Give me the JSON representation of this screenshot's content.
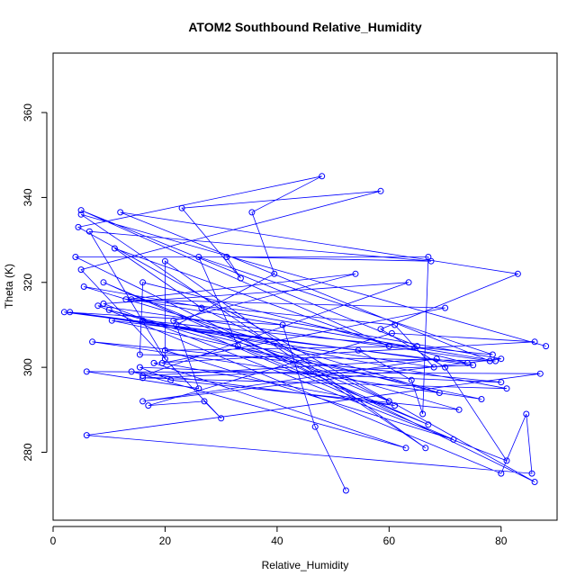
{
  "chart_data": {
    "type": "line",
    "title": "ATOM2 Southbound Relative_Humidity",
    "xlabel": "Relative_Humidity",
    "ylabel": "Theta (K)",
    "xlim": [
      0,
      90
    ],
    "ylim": [
      264,
      374
    ],
    "x_ticks": [
      0,
      20,
      40,
      60,
      80
    ],
    "y_ticks": [
      280,
      300,
      320,
      340,
      360
    ],
    "x_tick_labels": [
      "0",
      "20",
      "40",
      "60",
      "80"
    ],
    "y_tick_labels": [
      "280",
      "300",
      "320",
      "340",
      "360"
    ],
    "grid": false,
    "legend": "none",
    "color": "#0000ff",
    "marker": "open-circle",
    "series": [
      {
        "points": [
          [
            52.3,
            271
          ],
          [
            46.8,
            286
          ],
          [
            41,
            310
          ],
          [
            2,
            313
          ],
          [
            54.5,
            304
          ],
          [
            64,
            297
          ],
          [
            66,
            289
          ],
          [
            67,
            326
          ],
          [
            4,
            326
          ],
          [
            86,
            273
          ],
          [
            4.5,
            333
          ],
          [
            48,
            345
          ],
          [
            35.5,
            336.5
          ],
          [
            39.5,
            322
          ],
          [
            22,
            310
          ],
          [
            26,
            295
          ],
          [
            6,
            299
          ],
          [
            87,
            298.5
          ],
          [
            6,
            284
          ],
          [
            85.5,
            275
          ],
          [
            84.5,
            289
          ],
          [
            80,
            275
          ],
          [
            8,
            314.5
          ],
          [
            78,
            301.5
          ],
          [
            12,
            336.5
          ],
          [
            83,
            322
          ],
          [
            58.5,
            309
          ],
          [
            70,
            300
          ],
          [
            81,
            278
          ],
          [
            9,
            315
          ],
          [
            63.5,
            320
          ],
          [
            16,
            298
          ],
          [
            68.5,
            302
          ],
          [
            16,
            292
          ],
          [
            80,
            302
          ],
          [
            5.5,
            319
          ],
          [
            69,
            294
          ],
          [
            10,
            313.5
          ],
          [
            72.5,
            290
          ],
          [
            21,
            297
          ],
          [
            15.5,
            300
          ],
          [
            80,
            296.5
          ],
          [
            7,
            306
          ],
          [
            76.5,
            292.5
          ],
          [
            10.5,
            311
          ],
          [
            74,
            301
          ],
          [
            16,
            320
          ],
          [
            15.5,
            303
          ],
          [
            79,
            301.5
          ],
          [
            14,
            316
          ],
          [
            61,
            310
          ],
          [
            68,
            300
          ],
          [
            3,
            313
          ],
          [
            75,
            300.5
          ],
          [
            16,
            297.5
          ],
          [
            81,
            295
          ],
          [
            16,
            311
          ],
          [
            78.5,
            303
          ],
          [
            26,
            326
          ],
          [
            33,
            305
          ],
          [
            67,
            286.5
          ],
          [
            9,
            320
          ],
          [
            60,
            292
          ],
          [
            26.5,
            314
          ],
          [
            11,
            328
          ],
          [
            60,
            305
          ],
          [
            5,
            337
          ],
          [
            65,
            305
          ],
          [
            20,
            304
          ],
          [
            71.5,
            283
          ],
          [
            21.5,
            311
          ],
          [
            54,
            322
          ],
          [
            13,
            316
          ],
          [
            70,
            314
          ],
          [
            19.5,
            301
          ],
          [
            61,
            291
          ],
          [
            14,
            299
          ],
          [
            63,
            281
          ],
          [
            18,
            301
          ],
          [
            86,
            306
          ],
          [
            60.5,
            308
          ],
          [
            17,
            291
          ],
          [
            27,
            292
          ],
          [
            30,
            288
          ],
          [
            5,
            323
          ],
          [
            58.5,
            341.5
          ],
          [
            23,
            337.5
          ],
          [
            33.5,
            321
          ],
          [
            31,
            326
          ],
          [
            67.5,
            325
          ],
          [
            6.5,
            332
          ],
          [
            20,
            302
          ],
          [
            20,
            325
          ],
          [
            66.5,
            281
          ],
          [
            5,
            336
          ],
          [
            88,
            305
          ]
        ]
      }
    ]
  }
}
